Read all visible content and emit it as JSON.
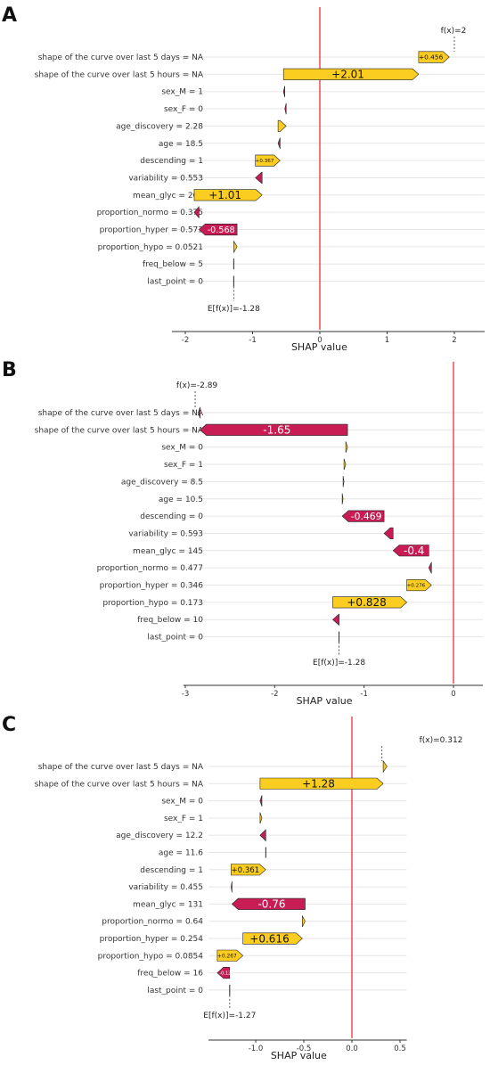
{
  "colors": {
    "positive": "#fbcd20",
    "negative": "#c81c55",
    "zero_line": "#e8202a",
    "grid": "#e6e6e6",
    "edge": "#222222"
  },
  "chart_data": [
    {
      "panel": "A",
      "type": "waterfall",
      "xlabel": "SHAP value",
      "xlim": [
        -2.2,
        2.45
      ],
      "xticks": [
        -2,
        -1,
        0,
        1,
        2
      ],
      "xtick_labels": [
        "-2",
        "-1",
        "0",
        "1",
        "2"
      ],
      "base_value": -1.28,
      "base_label": "E[f(x)]=-1.28",
      "fx": 2,
      "fx_label": "f(x)=2",
      "features": [
        {
          "label": "shape of the curve over last 5 days = NA",
          "value": 0.456,
          "value_label": "+0.456"
        },
        {
          "label": "shape of the curve over last 5 hours = NA",
          "value": 2.01,
          "value_label": "+2.01"
        },
        {
          "label": "sex_M = 1",
          "value": -0.02,
          "value_label": ""
        },
        {
          "label": "sex_F = 0",
          "value": -0.02,
          "value_label": ""
        },
        {
          "label": "age_discovery = 2.28",
          "value": 0.12,
          "value_label": ""
        },
        {
          "label": "age = 18.5",
          "value": -0.03,
          "value_label": ""
        },
        {
          "label": "descending = 1",
          "value": 0.367,
          "value_label": "+0.367"
        },
        {
          "label": "variability = 0.553",
          "value": -0.1,
          "value_label": ""
        },
        {
          "label": "mean_glyc = 200",
          "value": 1.01,
          "value_label": "+1.01"
        },
        {
          "label": "proportion_normo = 0.375",
          "value": -0.07,
          "value_label": ""
        },
        {
          "label": "proportion_hyper = 0.573",
          "value": -0.568,
          "value_label": "-0.568"
        },
        {
          "label": "proportion_hypo = 0.0521",
          "value": 0.05,
          "value_label": ""
        },
        {
          "label": "freq_below = 5",
          "value": 0.0,
          "value_label": ""
        },
        {
          "label": "last_point = 0",
          "value": 0.0,
          "value_label": ""
        }
      ]
    },
    {
      "panel": "B",
      "type": "waterfall",
      "xlabel": "SHAP value",
      "xlim": [
        -3.02,
        0.33
      ],
      "xticks": [
        -3,
        -2,
        -1,
        0
      ],
      "xtick_labels": [
        "-3",
        "-2",
        "-1",
        "0"
      ],
      "base_value": -1.28,
      "base_label": "E[f(x)]=-1.28",
      "fx": -2.89,
      "fx_label": "f(x)=-2.89",
      "features": [
        {
          "label": "shape of the curve over last 5 days = NA",
          "value": -0.02,
          "value_label": ""
        },
        {
          "label": "shape of the curve over last 5 hours = NA",
          "value": -1.65,
          "value_label": "-1.65"
        },
        {
          "label": "sex_M = 0",
          "value": 0.02,
          "value_label": ""
        },
        {
          "label": "sex_F = 1",
          "value": 0.02,
          "value_label": ""
        },
        {
          "label": "age_discovery = 8.5",
          "value": 0.01,
          "value_label": ""
        },
        {
          "label": "age = 10.5",
          "value": 0.01,
          "value_label": ""
        },
        {
          "label": "descending = 0",
          "value": -0.469,
          "value_label": "-0.469"
        },
        {
          "label": "variability = 0.593",
          "value": -0.1,
          "value_label": ""
        },
        {
          "label": "mean_glyc = 145",
          "value": -0.4,
          "value_label": "-0.4"
        },
        {
          "label": "proportion_normo = 0.477",
          "value": -0.03,
          "value_label": ""
        },
        {
          "label": "proportion_hyper = 0.346",
          "value": 0.276,
          "value_label": "+0.276"
        },
        {
          "label": "proportion_hypo = 0.173",
          "value": 0.828,
          "value_label": "+0.828"
        },
        {
          "label": "freq_below = 10",
          "value": -0.07,
          "value_label": ""
        },
        {
          "label": "last_point = 0",
          "value": 0.0,
          "value_label": ""
        }
      ]
    },
    {
      "panel": "C",
      "type": "waterfall",
      "xlabel": "SHAP value",
      "xlim": [
        -1.49,
        0.57
      ],
      "xticks": [
        -1.0,
        -0.5,
        0.0,
        0.5
      ],
      "xtick_labels": [
        "-1.0",
        "-0.5",
        "0.0",
        "0.5"
      ],
      "base_value": -1.27,
      "base_label": "E[f(x)]=-1.27",
      "fx": 0.312,
      "fx_label": "f(x)=0.312",
      "features": [
        {
          "label": "shape of the curve over last 5 days = NA",
          "value": 0.04,
          "value_label": ""
        },
        {
          "label": "shape of the curve over last 5 hours = NA",
          "value": 1.28,
          "value_label": "+1.28"
        },
        {
          "label": "sex_M = 0",
          "value": -0.02,
          "value_label": ""
        },
        {
          "label": "sex_F = 1",
          "value": 0.02,
          "value_label": ""
        },
        {
          "label": "age_discovery = 12.2",
          "value": -0.06,
          "value_label": ""
        },
        {
          "label": "age = 11.6",
          "value": 0.0,
          "value_label": ""
        },
        {
          "label": "descending = 1",
          "value": 0.361,
          "value_label": "+0.361"
        },
        {
          "label": "variability = 0.455",
          "value": -0.01,
          "value_label": ""
        },
        {
          "label": "mean_glyc = 131",
          "value": -0.76,
          "value_label": "-0.76"
        },
        {
          "label": "proportion_normo = 0.64",
          "value": 0.03,
          "value_label": ""
        },
        {
          "label": "proportion_hyper = 0.254",
          "value": 0.616,
          "value_label": "+0.616"
        },
        {
          "label": "proportion_hypo = 0.0854",
          "value": 0.267,
          "value_label": "+0.267"
        },
        {
          "label": "freq_below = 16",
          "value": -0.129,
          "value_label": "-0.129"
        },
        {
          "label": "last_point = 0",
          "value": 0.0,
          "value_label": ""
        }
      ]
    }
  ]
}
